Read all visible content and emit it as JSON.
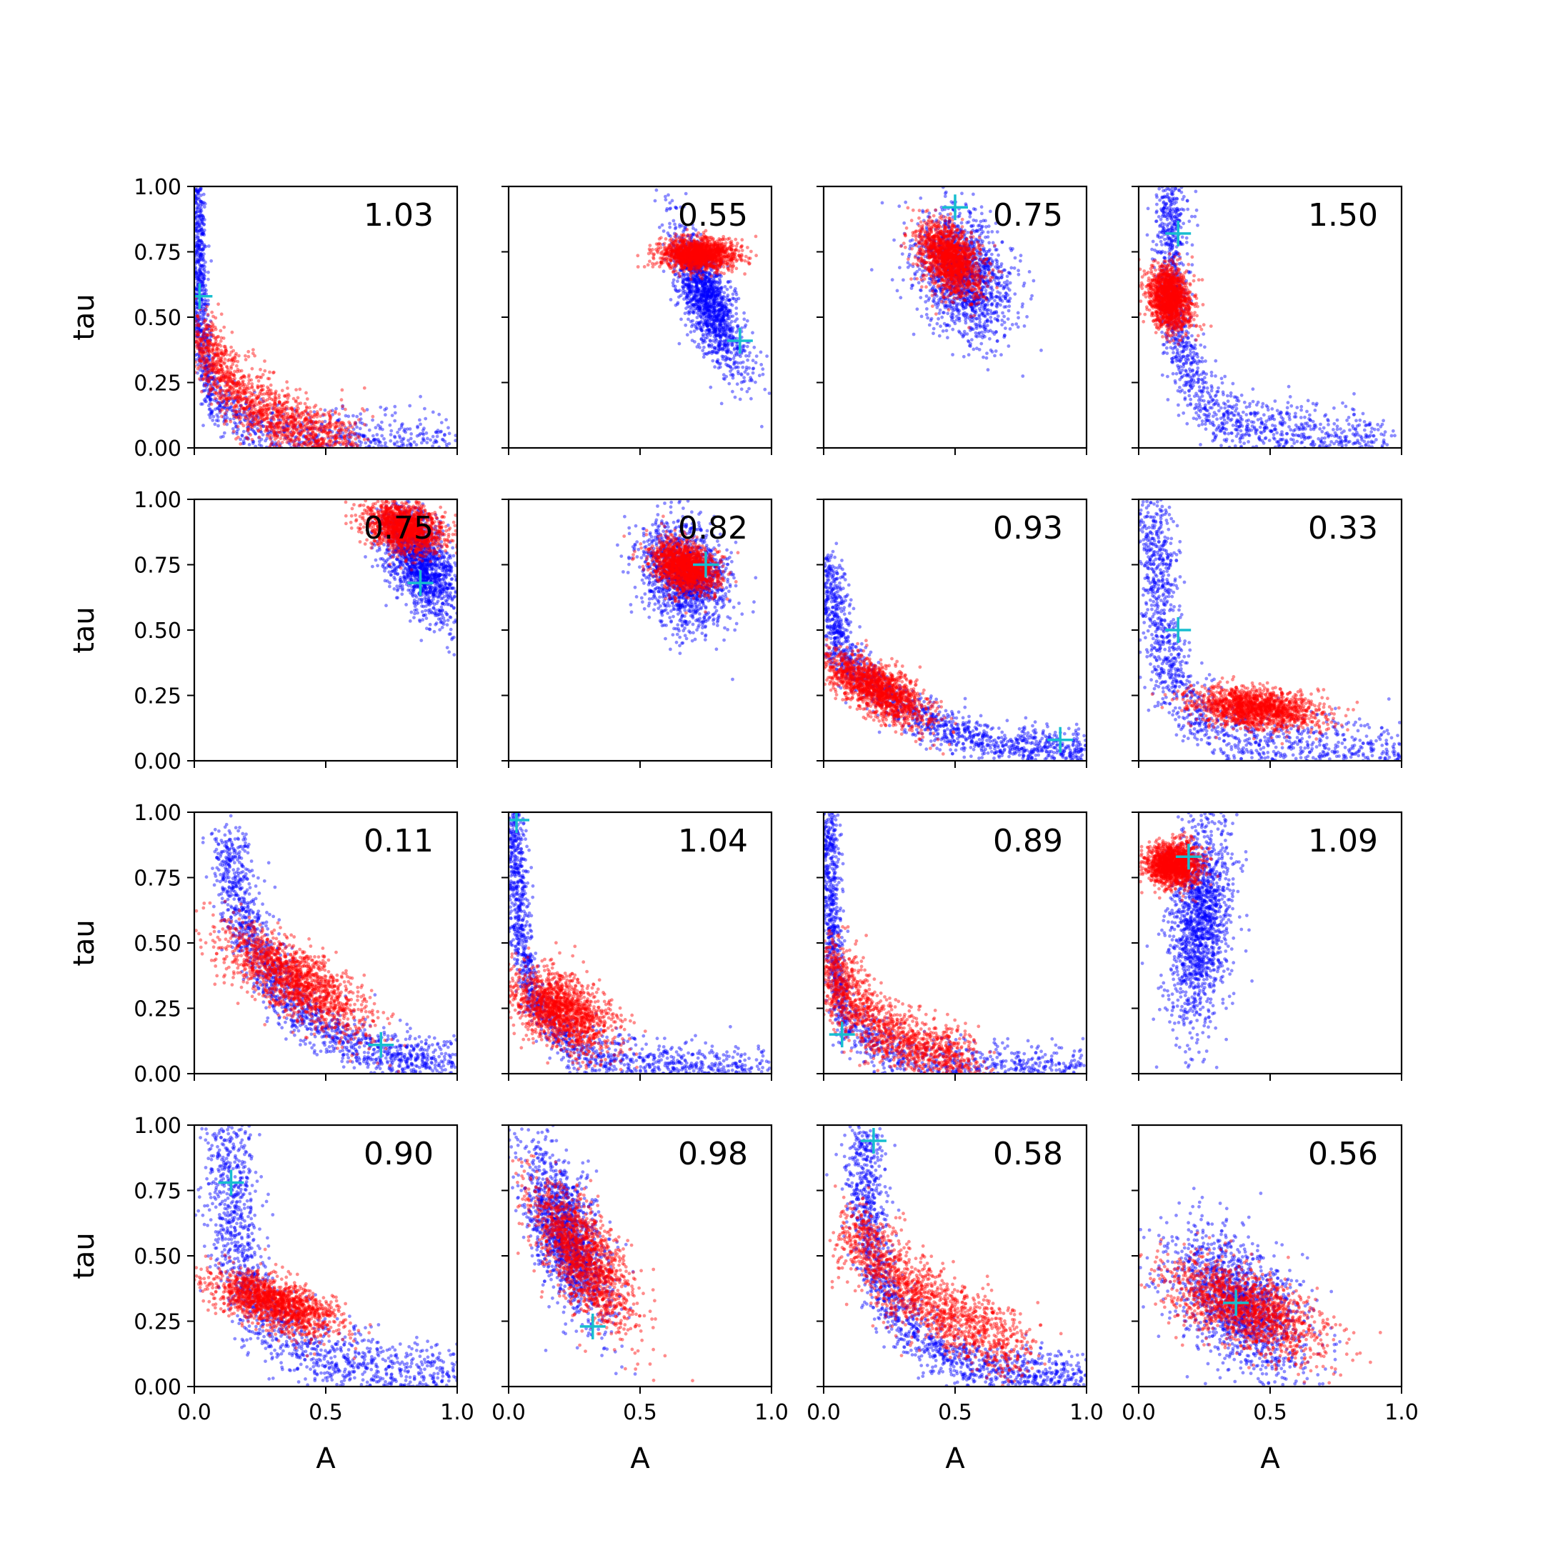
{
  "chart_data": {
    "type": "scatter",
    "grid_rows": 4,
    "grid_cols": 4,
    "xlabel": "A",
    "ylabel": "tau",
    "xlim": [
      0.0,
      1.0
    ],
    "ylim": [
      0.0,
      1.0
    ],
    "xticks": [
      "0.0",
      "0.5",
      "1.0"
    ],
    "yticks": [
      "0.00",
      "0.25",
      "0.50",
      "0.75",
      "1.00"
    ],
    "grid": false,
    "legend": "none",
    "colors": {
      "blue": "#0000ff",
      "red": "#ff0000",
      "marker": "#17becf"
    },
    "panels": [
      {
        "value": "1.03",
        "marker": [
          0.02,
          0.58
        ],
        "blue": {
          "shape": "curve",
          "curve": [
            [
              0.01,
              1.0
            ],
            [
              0.02,
              0.5
            ],
            [
              0.06,
              0.2
            ],
            [
              0.25,
              0.05
            ],
            [
              0.6,
              0.02
            ],
            [
              1.0,
              0.0
            ]
          ],
          "spread": [
            0.015,
            0.06
          ]
        },
        "red": {
          "shape": "curve",
          "curve": [
            [
              0.02,
              0.45
            ],
            [
              0.1,
              0.28
            ],
            [
              0.25,
              0.14
            ],
            [
              0.45,
              0.05
            ],
            [
              0.6,
              0.02
            ]
          ],
          "spread": [
            0.04,
            0.06
          ]
        }
      },
      {
        "value": "0.55",
        "marker": [
          0.88,
          0.41
        ],
        "blue": {
          "shape": "blob",
          "center": [
            0.76,
            0.56
          ],
          "sd": [
            0.07,
            0.14
          ],
          "rho": -0.75
        },
        "red": {
          "shape": "blob",
          "center": [
            0.72,
            0.74
          ],
          "sd": [
            0.07,
            0.03
          ],
          "rho": 0.0
        }
      },
      {
        "value": "0.75",
        "marker": [
          0.5,
          0.92
        ],
        "blue": {
          "shape": "blob",
          "center": [
            0.53,
            0.66
          ],
          "sd": [
            0.09,
            0.12
          ],
          "rho": -0.3
        },
        "red": {
          "shape": "blob",
          "center": [
            0.48,
            0.72
          ],
          "sd": [
            0.06,
            0.07
          ],
          "rho": -0.4
        }
      },
      {
        "value": "1.50",
        "marker": [
          0.15,
          0.82
        ],
        "blue": {
          "shape": "curve",
          "curve": [
            [
              0.12,
              1.0
            ],
            [
              0.12,
              0.7
            ],
            [
              0.14,
              0.45
            ],
            [
              0.2,
              0.25
            ],
            [
              0.35,
              0.1
            ],
            [
              0.7,
              0.03
            ],
            [
              0.95,
              0.01
            ]
          ],
          "spread": [
            0.03,
            0.06
          ]
        },
        "red": {
          "shape": "blob",
          "center": [
            0.12,
            0.57
          ],
          "sd": [
            0.04,
            0.06
          ],
          "rho": -0.2
        }
      },
      {
        "value": "0.75",
        "marker": [
          0.86,
          0.68
        ],
        "blue": {
          "shape": "blob",
          "center": [
            0.86,
            0.76
          ],
          "sd": [
            0.07,
            0.11
          ],
          "rho": -0.5
        },
        "red": {
          "shape": "blob",
          "center": [
            0.8,
            0.89
          ],
          "sd": [
            0.07,
            0.05
          ],
          "rho": -0.3
        }
      },
      {
        "value": "0.82",
        "marker": [
          0.75,
          0.75
        ],
        "blue": {
          "shape": "blob",
          "center": [
            0.67,
            0.71
          ],
          "sd": [
            0.08,
            0.1
          ],
          "rho": -0.2
        },
        "red": {
          "shape": "blob",
          "center": [
            0.67,
            0.74
          ],
          "sd": [
            0.06,
            0.05
          ],
          "rho": -0.3
        }
      },
      {
        "value": "0.93",
        "marker": [
          0.9,
          0.08
        ],
        "blue": {
          "shape": "curve",
          "curve": [
            [
              0.02,
              0.75
            ],
            [
              0.05,
              0.42
            ],
            [
              0.15,
              0.32
            ],
            [
              0.3,
              0.2
            ],
            [
              0.5,
              0.1
            ],
            [
              0.75,
              0.05
            ],
            [
              1.0,
              0.04
            ]
          ],
          "spread": [
            0.03,
            0.04
          ]
        },
        "red": {
          "shape": "blob",
          "center": [
            0.2,
            0.28
          ],
          "sd": [
            0.1,
            0.07
          ],
          "rho": -0.7
        }
      },
      {
        "value": "0.33",
        "marker": [
          0.15,
          0.5
        ],
        "blue": {
          "shape": "curve",
          "curve": [
            [
              0.06,
              1.0
            ],
            [
              0.08,
              0.6
            ],
            [
              0.12,
              0.3
            ],
            [
              0.3,
              0.1
            ],
            [
              0.6,
              0.03
            ],
            [
              1.0,
              0.01
            ]
          ],
          "spread": [
            0.04,
            0.07
          ]
        },
        "red": {
          "shape": "blob",
          "center": [
            0.45,
            0.2
          ],
          "sd": [
            0.12,
            0.04
          ],
          "rho": -0.3
        }
      },
      {
        "value": "0.11",
        "marker": [
          0.71,
          0.11
        ],
        "blue": {
          "shape": "curve",
          "curve": [
            [
              0.12,
              0.9
            ],
            [
              0.2,
              0.55
            ],
            [
              0.35,
              0.28
            ],
            [
              0.55,
              0.13
            ],
            [
              0.75,
              0.07
            ],
            [
              1.0,
              0.04
            ]
          ],
          "spread": [
            0.04,
            0.05
          ]
        },
        "red": {
          "shape": "blob",
          "center": [
            0.38,
            0.36
          ],
          "sd": [
            0.14,
            0.1
          ],
          "rho": -0.75
        }
      },
      {
        "value": "1.04",
        "marker": [
          0.03,
          0.97
        ],
        "blue": {
          "shape": "curve",
          "curve": [
            [
              0.02,
              1.0
            ],
            [
              0.04,
              0.6
            ],
            [
              0.08,
              0.3
            ],
            [
              0.25,
              0.08
            ],
            [
              0.6,
              0.02
            ],
            [
              1.0,
              0.0
            ]
          ],
          "spread": [
            0.02,
            0.05
          ]
        },
        "red": {
          "shape": "blob",
          "center": [
            0.2,
            0.24
          ],
          "sd": [
            0.1,
            0.08
          ],
          "rho": -0.5
        }
      },
      {
        "value": "0.89",
        "marker": [
          0.07,
          0.15
        ],
        "blue": {
          "shape": "curve",
          "curve": [
            [
              0.02,
              1.0
            ],
            [
              0.03,
              0.5
            ],
            [
              0.08,
              0.2
            ],
            [
              0.3,
              0.05
            ],
            [
              0.7,
              0.01
            ],
            [
              1.0,
              0.0
            ]
          ],
          "spread": [
            0.02,
            0.05
          ]
        },
        "red": {
          "shape": "curve",
          "curve": [
            [
              0.02,
              0.45
            ],
            [
              0.08,
              0.3
            ],
            [
              0.2,
              0.18
            ],
            [
              0.35,
              0.1
            ],
            [
              0.55,
              0.05
            ]
          ],
          "spread": [
            0.05,
            0.06
          ]
        }
      },
      {
        "value": "1.09",
        "marker": [
          0.19,
          0.83
        ],
        "blue": {
          "shape": "blob",
          "center": [
            0.23,
            0.58
          ],
          "sd": [
            0.06,
            0.2
          ],
          "rho": 0.2
        },
        "red": {
          "shape": "blob",
          "center": [
            0.13,
            0.8
          ],
          "sd": [
            0.05,
            0.04
          ],
          "rho": 0.0
        }
      },
      {
        "value": "0.90",
        "marker": [
          0.14,
          0.78
        ],
        "blue": {
          "shape": "curve",
          "curve": [
            [
              0.12,
              1.0
            ],
            [
              0.15,
              0.6
            ],
            [
              0.2,
              0.35
            ],
            [
              0.35,
              0.2
            ],
            [
              0.6,
              0.08
            ],
            [
              0.85,
              0.04
            ],
            [
              1.0,
              0.02
            ]
          ],
          "spread": [
            0.05,
            0.07
          ]
        },
        "red": {
          "shape": "blob",
          "center": [
            0.3,
            0.32
          ],
          "sd": [
            0.12,
            0.06
          ],
          "rho": -0.6
        }
      },
      {
        "value": "0.98",
        "marker": [
          0.32,
          0.23
        ],
        "blue": {
          "shape": "blob",
          "center": [
            0.22,
            0.58
          ],
          "sd": [
            0.08,
            0.16
          ],
          "rho": -0.6
        },
        "red": {
          "shape": "blob",
          "center": [
            0.28,
            0.5
          ],
          "sd": [
            0.1,
            0.14
          ],
          "rho": -0.7
        }
      },
      {
        "value": "0.58",
        "marker": [
          0.19,
          0.94
        ],
        "blue": {
          "shape": "curve",
          "curve": [
            [
              0.15,
              1.0
            ],
            [
              0.17,
              0.6
            ],
            [
              0.25,
              0.3
            ],
            [
              0.4,
              0.15
            ],
            [
              0.6,
              0.07
            ],
            [
              0.85,
              0.04
            ],
            [
              1.0,
              0.03
            ]
          ],
          "spread": [
            0.04,
            0.05
          ]
        },
        "red": {
          "shape": "curve",
          "curve": [
            [
              0.1,
              0.62
            ],
            [
              0.2,
              0.48
            ],
            [
              0.35,
              0.35
            ],
            [
              0.55,
              0.23
            ],
            [
              0.75,
              0.14
            ]
          ],
          "spread": [
            0.05,
            0.07
          ]
        }
      },
      {
        "value": "0.56",
        "marker": [
          0.37,
          0.32
        ],
        "blue": {
          "shape": "blob",
          "center": [
            0.38,
            0.32
          ],
          "sd": [
            0.13,
            0.14
          ],
          "rho": -0.5
        },
        "red": {
          "shape": "blob",
          "center": [
            0.4,
            0.3
          ],
          "sd": [
            0.15,
            0.09
          ],
          "rho": -0.6
        }
      }
    ]
  }
}
